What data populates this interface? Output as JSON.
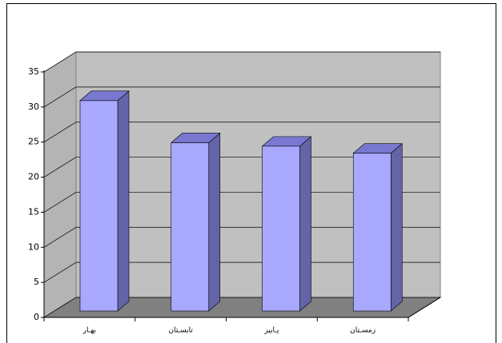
{
  "chart_data": {
    "type": "bar3d",
    "categories": [
      "بهـار",
      "تابسـتان",
      "پـاییز",
      "زمسـتان"
    ],
    "values": [
      30,
      24,
      23.5,
      22.5
    ],
    "color": "#a8a8ff",
    "ylim": [
      0,
      35
    ],
    "yticks": [
      0,
      5,
      10,
      15,
      20,
      25,
      30,
      35
    ],
    "grid": true
  }
}
